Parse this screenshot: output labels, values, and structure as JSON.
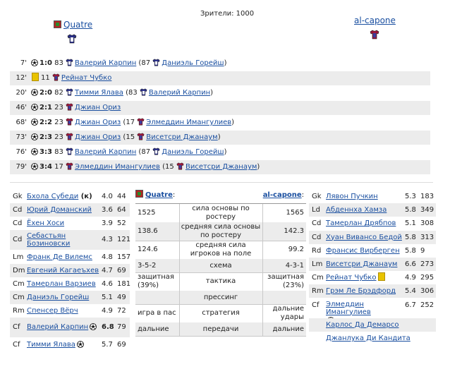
{
  "header": {
    "spectators": "Зрители: 1000",
    "home_team": "Quatre",
    "away_team": "al-capone",
    "home_color": "#2a2f8a",
    "away_color": "#a0173a"
  },
  "events": [
    {
      "min": "7'",
      "type": "goal",
      "score": "1:0",
      "side": "home",
      "num": "83",
      "player": "Валерий Карпин",
      "assist_num": "87",
      "assist": "Даниэль Горейш"
    },
    {
      "min": "12'",
      "type": "card",
      "score": "",
      "side": "away",
      "num": "11",
      "player": "Рейнат Чубко",
      "assist_num": "",
      "assist": ""
    },
    {
      "min": "20'",
      "type": "goal",
      "score": "2:0",
      "side": "home",
      "num": "82",
      "player": "Тимми Ялава",
      "assist_num": "83",
      "assist": "Валерий Карпин"
    },
    {
      "min": "46'",
      "type": "goal",
      "score": "2:1",
      "side": "away",
      "num": "23",
      "player": "Джиан Ориз",
      "assist_num": "",
      "assist": ""
    },
    {
      "min": "68'",
      "type": "goal",
      "score": "2:2",
      "side": "away",
      "num": "23",
      "player": "Джиан Ориз",
      "assist_num": "17",
      "assist": "Элмеддин Имангулиев"
    },
    {
      "min": "73'",
      "type": "goal",
      "score": "2:3",
      "side": "away",
      "num": "23",
      "player": "Джиан Ориз",
      "assist_num": "15",
      "assist": "Висетсри Джанаум"
    },
    {
      "min": "76'",
      "type": "goal",
      "score": "3:3",
      "side": "home",
      "num": "83",
      "player": "Валерий Карпин",
      "assist_num": "87",
      "assist": "Даниэль Горейш"
    },
    {
      "min": "79'",
      "type": "goal",
      "score": "3:4",
      "side": "away",
      "num": "17",
      "player": "Элмеддин Имангулиев",
      "assist_num": "15",
      "assist": "Висетсри Джанаум"
    }
  ],
  "home_lineup": [
    {
      "pos": "Gk",
      "name": "Бхола Субеди",
      "extra": "(к)",
      "rating": "4.0",
      "age": "44",
      "goal": false
    },
    {
      "pos": "Cd",
      "name": "Юрий Доманский",
      "rating": "3.6",
      "age": "64",
      "goal": false
    },
    {
      "pos": "Cd",
      "name": "Ёхен Хоси",
      "rating": "3.9",
      "age": "52",
      "goal": false
    },
    {
      "pos": "Cd",
      "name": "Себастьян Бозиновски",
      "rating": "4.3",
      "age": "121",
      "goal": false
    },
    {
      "pos": "Lm",
      "name": "Франк Де Вилемс",
      "rating": "4.8",
      "age": "157",
      "goal": false
    },
    {
      "pos": "Dm",
      "name": "Евгений Кагаеъхев",
      "rating": "4.7",
      "age": "69",
      "goal": false
    },
    {
      "pos": "Cm",
      "name": "Тамерлан Варзиев",
      "rating": "4.6",
      "age": "181",
      "goal": false
    },
    {
      "pos": "Cm",
      "name": "Даниэль Горейш",
      "rating": "5.1",
      "age": "49",
      "goal": false
    },
    {
      "pos": "Rm",
      "name": "Спенсер Вёрч",
      "rating": "4.9",
      "age": "72",
      "goal": false
    },
    {
      "pos": "Cf",
      "name": "Валерий Карпин",
      "rating": "6.8",
      "age": "79",
      "goal": true
    },
    {
      "pos": "Cf",
      "name": "Тимми Ялава",
      "rating": "5.7",
      "age": "69",
      "goal": true
    }
  ],
  "away_lineup": [
    {
      "pos": "Gk",
      "name": "Лявон Пучкин",
      "rating": "5.3",
      "age": "183",
      "goal": false,
      "card": false
    },
    {
      "pos": "Ld",
      "name": "Абденнха Хамза",
      "rating": "5.8",
      "age": "349",
      "goal": false,
      "card": false
    },
    {
      "pos": "Cd",
      "name": "Тамерлан Дрябпов",
      "rating": "5.1",
      "age": "308",
      "goal": false,
      "card": false
    },
    {
      "pos": "Cd",
      "name": "Хуан Вивансо Бедой",
      "rating": "5.8",
      "age": "313",
      "goal": false,
      "card": false
    },
    {
      "pos": "Rd",
      "name": "Франсис Вирберген",
      "rating": "5.8",
      "age": "9",
      "goal": false,
      "card": false
    },
    {
      "pos": "Lm",
      "name": "Висетсри Джанаум",
      "rating": "6.6",
      "age": "273",
      "goal": false,
      "card": false
    },
    {
      "pos": "Cm",
      "name": "Рейнат Чубко",
      "rating": "4.9",
      "age": "295",
      "goal": false,
      "card": true
    },
    {
      "pos": "Rm",
      "name": "Грэм Ле Брэдфорд",
      "rating": "5.4",
      "age": "306",
      "goal": false,
      "card": false
    },
    {
      "pos": "Cf",
      "name": "Элмеддин Имангулиев",
      "rating": "6.7",
      "age": "252",
      "goal": true,
      "card": false
    }
  ],
  "away_subs": [
    "Карлос Да Демарсо",
    "Джанлука Ди Кандита"
  ],
  "comparison": {
    "home": "Quatre",
    "away": "al-capone",
    "rows": [
      {
        "l": "1525",
        "m": "сила основы по ростеру",
        "r": "1565"
      },
      {
        "l": "138.6",
        "m": "средняя сила основы по ростеру",
        "r": "142.3"
      },
      {
        "l": "124.6",
        "m": "средняя сила игроков на поле",
        "r": "99.2"
      },
      {
        "l": "3-5-2",
        "m": "схема",
        "r": "4-3-1"
      },
      {
        "l": "защитная (39%)",
        "m": "тактика",
        "r": "защитная (23%)"
      },
      {
        "l": "",
        "m": "прессинг",
        "r": ""
      },
      {
        "l": "игра в пас",
        "m": "стратегия",
        "r": "дальние удары"
      },
      {
        "l": "дальние",
        "m": "передачи",
        "r": "дальние"
      }
    ]
  }
}
